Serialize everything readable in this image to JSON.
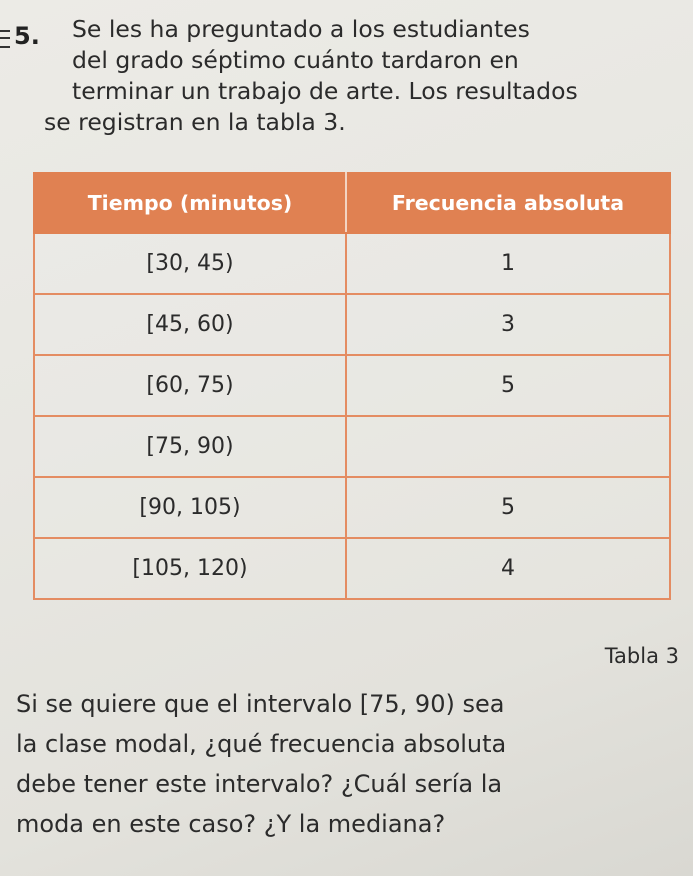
{
  "problem": {
    "number": "5.",
    "lines": [
      "Se les ha preguntado a los estudiantes",
      "del grado séptimo cuánto tardaron en",
      "terminar un trabajo de arte. Los resultados",
      "se registran en la tabla 3."
    ]
  },
  "table": {
    "headers": [
      "Tiempo (minutos)",
      "Frecuencia absoluta"
    ],
    "rows": [
      [
        "[30, 45)",
        "1"
      ],
      [
        "[45, 60)",
        "3"
      ],
      [
        "[60, 75)",
        "5"
      ],
      [
        "[75, 90)",
        ""
      ],
      [
        "[90, 105)",
        "5"
      ],
      [
        "[105, 120)",
        "4"
      ]
    ],
    "caption": "Tabla 3",
    "header_color": "#e08152",
    "border_color": "#e48c62"
  },
  "question": {
    "lines": [
      "Si se quiere que el intervalo [75, 90) sea",
      "la clase modal, ¿qué frecuencia absoluta",
      "debe tener este intervalo? ¿Cuál sería la",
      "moda en este caso? ¿Y la mediana?"
    ]
  }
}
